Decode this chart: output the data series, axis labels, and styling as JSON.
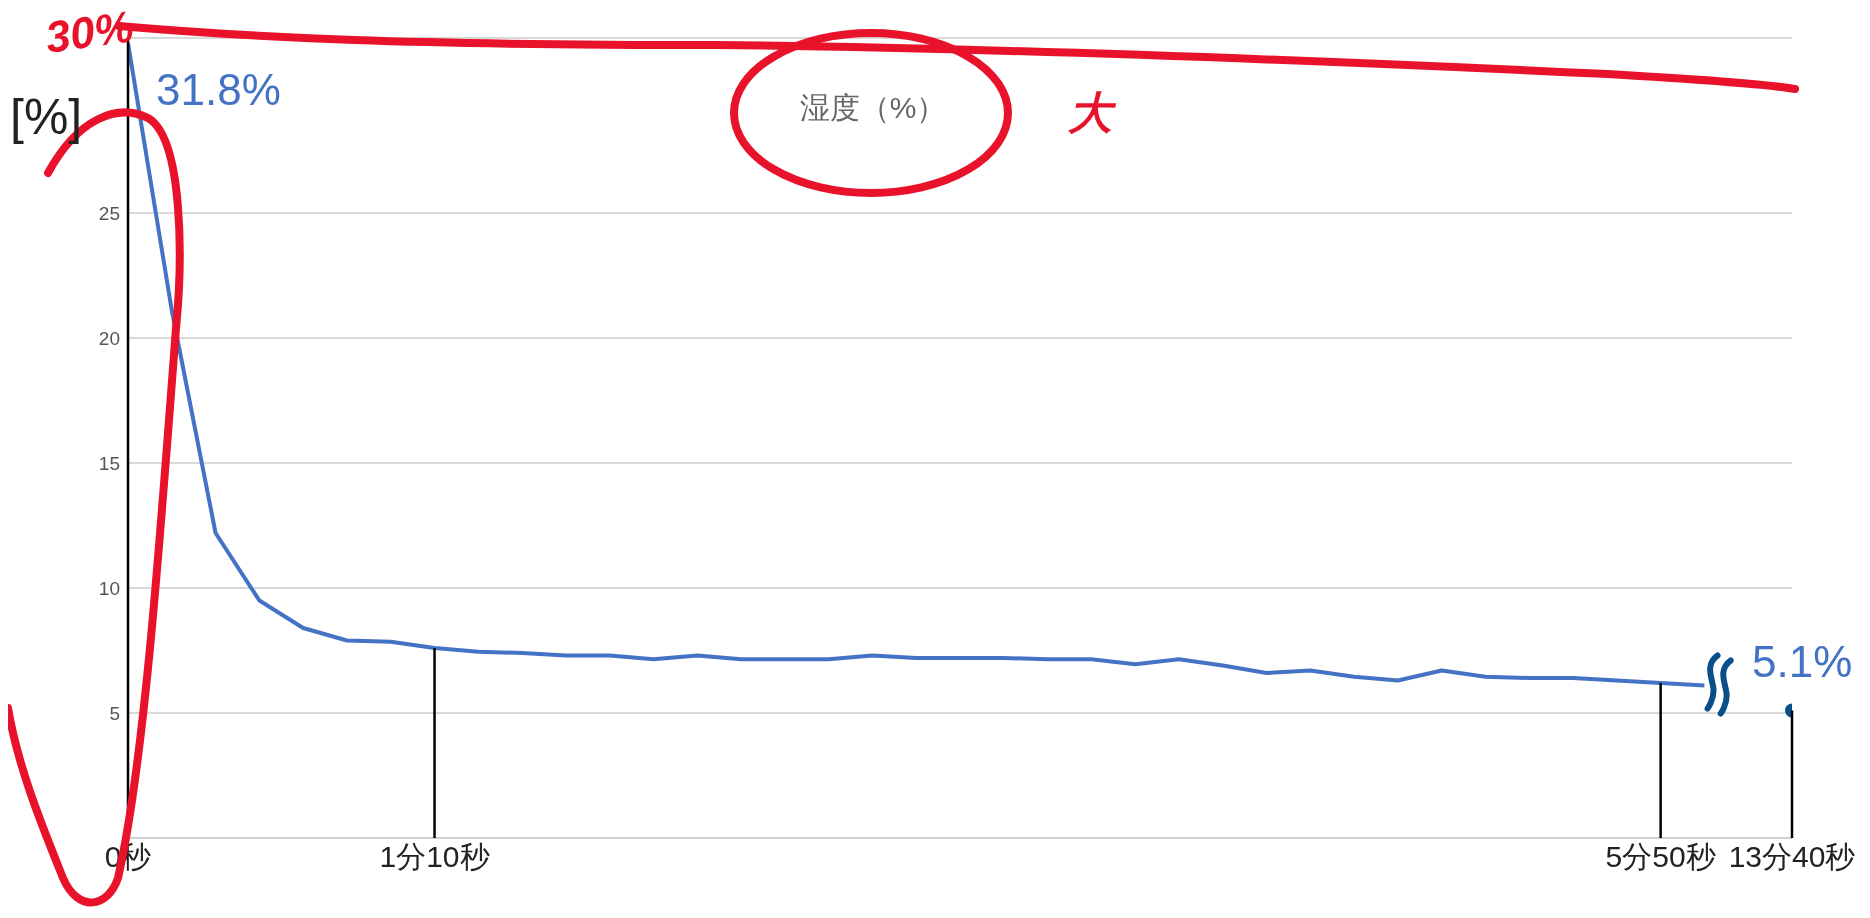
{
  "chart_data": {
    "type": "line",
    "title": "湿度（%）",
    "ylabel": "[%]",
    "categories": [
      "0秒",
      null,
      null,
      null,
      null,
      null,
      null,
      "1分10秒",
      null,
      null,
      null,
      null,
      null,
      null,
      null,
      null,
      null,
      null,
      null,
      null,
      null,
      null,
      null,
      null,
      null,
      null,
      null,
      null,
      null,
      null,
      null,
      null,
      null,
      null,
      null,
      "5分50秒",
      null,
      null,
      "13分40秒"
    ],
    "series": [
      {
        "color": "#4472c4",
        "values": [
          31.8,
          21.1,
          12.2,
          9.5,
          8.4,
          7.9,
          7.85,
          7.6,
          7.45,
          7.4,
          7.3,
          7.3,
          7.15,
          7.3,
          7.15,
          7.15,
          7.15,
          7.3,
          7.2,
          7.2,
          7.2,
          7.15,
          7.15,
          6.95,
          7.15,
          6.9,
          6.6,
          6.7,
          6.45,
          6.3,
          6.7,
          6.45,
          6.4,
          6.4,
          6.3,
          6.2,
          6.1,
          null,
          null
        ]
      },
      {
        "type": "scatter",
        "color": "#0b4f8a",
        "marker": "circle",
        "values": [
          null,
          null,
          null,
          null,
          null,
          null,
          null,
          null,
          null,
          null,
          null,
          null,
          null,
          null,
          null,
          null,
          null,
          null,
          null,
          null,
          null,
          null,
          null,
          null,
          null,
          null,
          null,
          null,
          null,
          null,
          null,
          null,
          null,
          null,
          null,
          null,
          null,
          null,
          5.1
        ]
      }
    ],
    "ylim": [
      0,
      32
    ],
    "yticks": [
      5,
      10,
      15,
      20,
      25
    ],
    "grid": "y",
    "marker": "none",
    "legend": false,
    "annotations": [
      {
        "text": "31.8%",
        "x": "0秒",
        "y": 31.8
      },
      {
        "text": "5.1%",
        "x": "13分40秒",
        "y": 5.1
      },
      "30%",
      "大"
    ]
  }
}
